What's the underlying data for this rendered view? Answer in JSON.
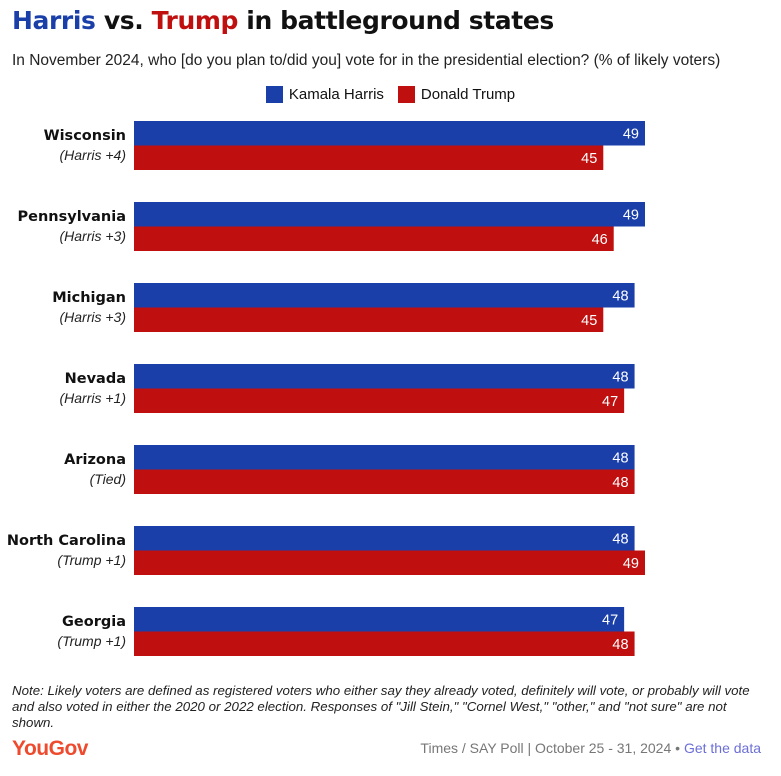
{
  "title": {
    "part1": "Harris",
    "part2": " vs. ",
    "part3": "Trump",
    "part4": " in battleground states"
  },
  "subtitle": "In November 2024, who [do you plan to/did you] vote for in the presidential election? (% of likely voters)",
  "colors": {
    "harris": "#1a3fa8",
    "trump": "#c00f0f"
  },
  "chart_data": {
    "type": "bar",
    "orientation": "horizontal",
    "categories": [
      "Wisconsin",
      "Pennsylvania",
      "Michigan",
      "Nevada",
      "Arizona",
      "North Carolina",
      "Georgia"
    ],
    "margins": [
      "(Harris +4)",
      "(Harris +3)",
      "(Harris +3)",
      "(Harris +1)",
      "(Tied)",
      "(Trump +1)",
      "(Trump +1)"
    ],
    "series": [
      {
        "name": "Kamala Harris",
        "values": [
          49,
          49,
          48,
          48,
          48,
          48,
          47
        ]
      },
      {
        "name": "Donald Trump",
        "values": [
          45,
          46,
          45,
          47,
          48,
          49,
          48
        ]
      }
    ],
    "xlim": [
      0,
      49
    ],
    "legend": "top-center",
    "grid": false
  },
  "footnote": "Note: Likely voters are defined as registered voters who either say they already voted, definitely will vote, or probably will vote and also voted in either the 2020 or 2022 election. Responses of \"Jill Stein,\" \"Cornel West,\" \"other,\" and \"not sure\" are not shown.",
  "logo": "YouGov",
  "source": {
    "text": "Times / SAY Poll | October 25 - 31, 2024 • ",
    "link": "Get the data"
  }
}
